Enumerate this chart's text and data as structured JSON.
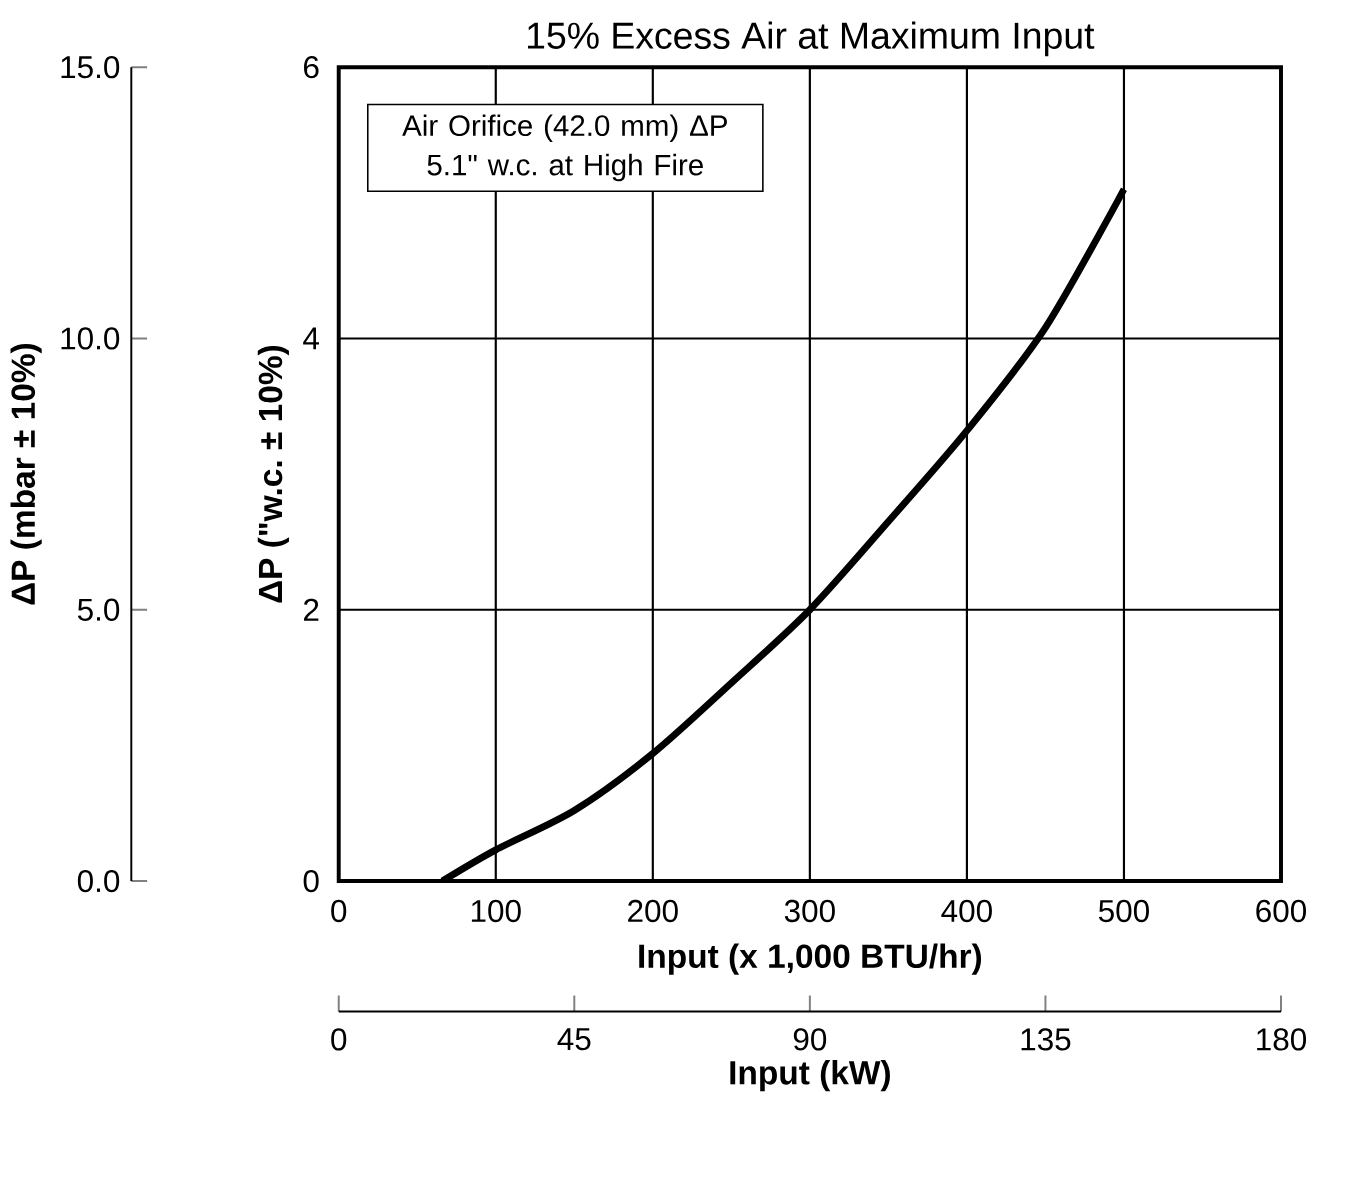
{
  "chart_data": {
    "type": "line",
    "title": "15% Excess Air at Maximum Input",
    "xlabel": "Input (x 1,000 BTU/hr)",
    "ylabel": "ΔP (\"w.c. ± 10%)",
    "y2label": "ΔP (mbar ± 10%)",
    "x2label": "Input (kW)",
    "annotations": [
      "Air Orifice (42.0 mm) ΔP 5.1\" w.c. at High Fire"
    ],
    "x": [
      66,
      100,
      150,
      200,
      250,
      300,
      350,
      400,
      450,
      500
    ],
    "series": [
      {
        "color": "#000000",
        "values": [
          0,
          0.23,
          0.52,
          0.94,
          1.46,
          2.0,
          2.65,
          3.32,
          4.08,
          5.1
        ]
      }
    ],
    "xlim": [
      0,
      600
    ],
    "ylim": [
      0,
      6
    ],
    "xticks": [
      0,
      100,
      200,
      300,
      400,
      500,
      600
    ],
    "yticks": [
      0,
      2,
      4,
      6
    ],
    "y2lim": [
      0,
      15
    ],
    "y2ticks": [
      {
        "value": 0,
        "label": "0.0"
      },
      {
        "value": 5,
        "label": "5.0"
      },
      {
        "value": 10,
        "label": "10.0"
      },
      {
        "value": 15,
        "label": "15.0"
      }
    ],
    "x2lim": [
      0,
      180
    ],
    "x2ticks": [
      0,
      45,
      90,
      135,
      180
    ],
    "grid": true,
    "marker": "none",
    "line_style": "solid"
  }
}
